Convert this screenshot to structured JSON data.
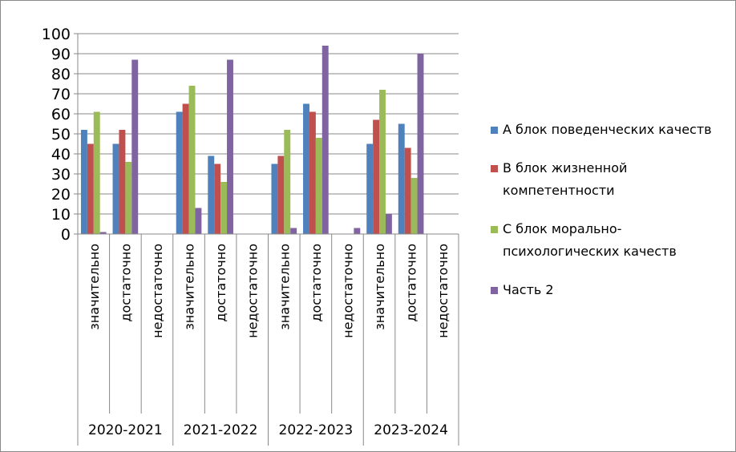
{
  "chart_data": {
    "type": "bar",
    "categories": [
      "значительно",
      "достаточно",
      "недостаточно",
      "значительно",
      "достаточно",
      "недостаточно",
      "значительно",
      "достаточно",
      "недостаточно",
      "значительно",
      "достаточно",
      "недостаточно"
    ],
    "category_groups": [
      "2020-2021",
      "2021-2022",
      "2022-2023",
      "2023-2024"
    ],
    "series": [
      {
        "name": "А блок поведенческих качеств",
        "color": "#4f81bd",
        "values": [
          52,
          45,
          0,
          61,
          39,
          0,
          35,
          65,
          0,
          45,
          55,
          0
        ]
      },
      {
        "name": "В блок жизненной компетентности",
        "color": "#c0504d",
        "values": [
          45,
          52,
          0,
          65,
          35,
          0,
          39,
          61,
          0,
          57,
          43,
          0
        ]
      },
      {
        "name": "С блок морально-психологических качеств",
        "color": "#9bbb59",
        "values": [
          61,
          36,
          0,
          74,
          26,
          0,
          52,
          48,
          0,
          72,
          28,
          0
        ]
      },
      {
        "name": "Часть 2",
        "color": "#8064a2",
        "values": [
          1,
          87,
          0,
          13,
          87,
          0,
          3,
          94,
          3,
          10,
          90,
          0
        ]
      }
    ],
    "ylim": [
      0,
      100
    ],
    "yticks": [
      0,
      10,
      20,
      30,
      40,
      50,
      60,
      70,
      80,
      90,
      100
    ],
    "grid": true,
    "legend": "right"
  }
}
